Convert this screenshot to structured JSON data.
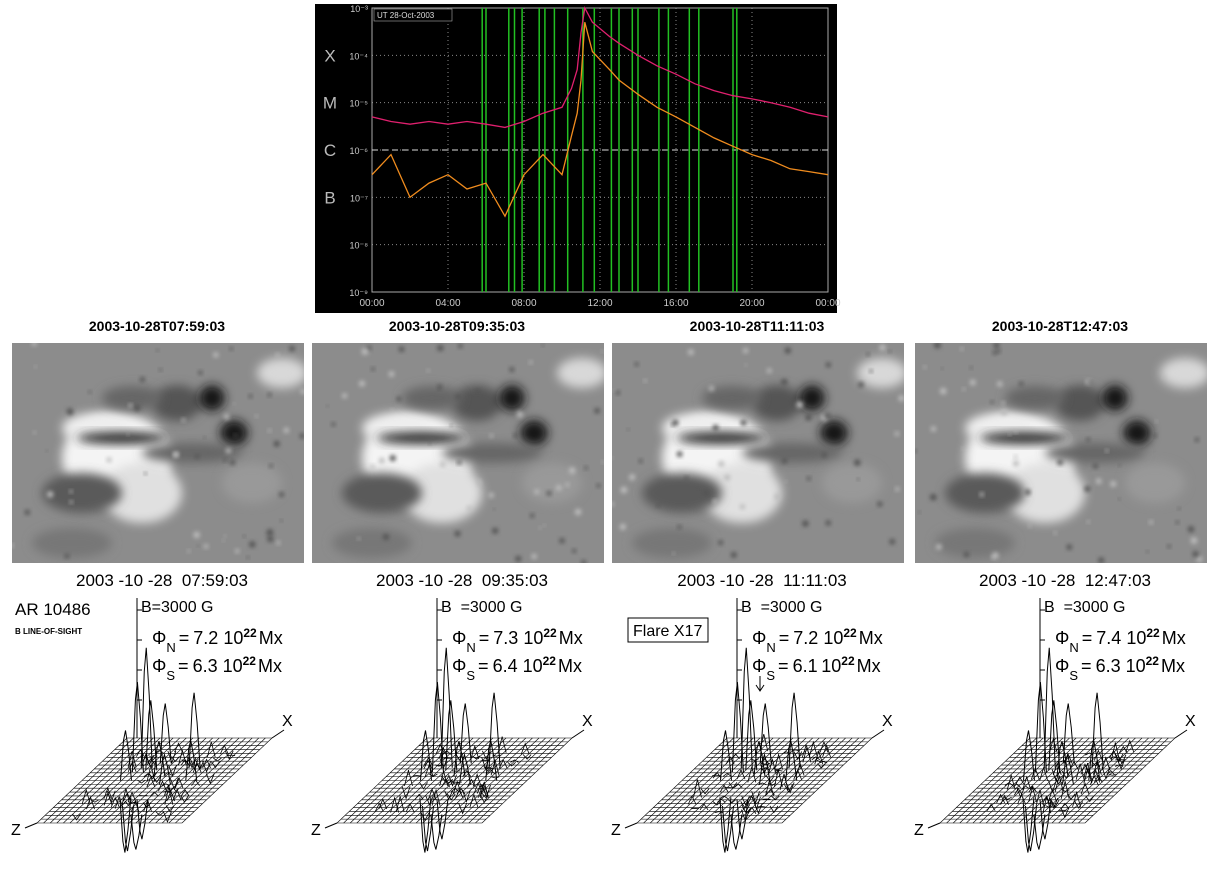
{
  "chart_data": {
    "type": "line",
    "subtitle": "UT 28-Oct-2003",
    "log_y": true,
    "grid": true,
    "x": [
      0,
      1,
      2,
      3,
      4,
      5,
      6,
      7,
      8,
      9,
      10,
      10.5,
      10.8,
      11,
      11.2,
      11.6,
      12.5,
      13,
      14,
      15,
      16,
      17,
      18,
      19,
      20,
      21,
      22,
      23,
      24
    ],
    "series": [
      {
        "color": "#e0206e",
        "values": [
          5e-06,
          4e-06,
          3.5e-06,
          4e-06,
          3.5e-06,
          4e-06,
          3.5e-06,
          3e-06,
          4e-06,
          6e-06,
          8e-06,
          2e-05,
          5e-05,
          0.0003,
          0.001,
          0.0005,
          0.00025,
          0.00018,
          0.0001,
          6e-05,
          4e-05,
          2.5e-05,
          1.8e-05,
          1.4e-05,
          1.2e-05,
          1e-05,
          8e-06,
          6e-06,
          5e-06
        ]
      },
      {
        "color": "#f08c1e",
        "values": [
          3e-07,
          8e-07,
          1e-07,
          2e-07,
          3e-07,
          1.5e-07,
          2e-07,
          4e-08,
          3e-07,
          8e-07,
          3e-07,
          2e-06,
          6e-06,
          3e-05,
          0.0005,
          0.00012,
          5e-05,
          3e-05,
          1.5e-05,
          8e-06,
          5e-06,
          3e-06,
          1.8e-06,
          1.2e-06,
          8e-07,
          6e-07,
          4e-07,
          3.5e-07,
          3e-07
        ]
      }
    ],
    "markers_x": [
      5.8,
      6.0,
      7.2,
      7.5,
      7.9,
      8.8,
      9.1,
      9.6,
      10.3,
      11.1,
      11.7,
      12.6,
      13.0,
      13.7,
      14.0,
      15.1,
      15.6,
      16.7,
      17.2,
      19.0,
      19.2
    ],
    "marker_color": "#22c022",
    "reference_line": 1e-06,
    "xlim": [
      0,
      24
    ],
    "xticks": [
      {
        "value": 0,
        "label": "00:00"
      },
      {
        "value": 4,
        "label": "04:00"
      },
      {
        "value": 8,
        "label": "08:00"
      },
      {
        "value": 12,
        "label": "12:00"
      },
      {
        "value": 16,
        "label": "16:00"
      },
      {
        "value": 20,
        "label": "20:00"
      },
      {
        "value": 24,
        "label": "00:00"
      }
    ],
    "ylim": [
      1e-09,
      0.001
    ],
    "yticks": [
      {
        "value": 1e-09,
        "label": "10⁻⁹"
      },
      {
        "value": 1e-08,
        "label": "10⁻⁸"
      },
      {
        "value": 1e-07,
        "label": "10⁻⁷"
      },
      {
        "value": 1e-06,
        "label": "10⁻⁶"
      },
      {
        "value": 1e-05,
        "label": "10⁻⁵"
      },
      {
        "value": 0.0001,
        "label": "10⁻⁴"
      },
      {
        "value": 0.001,
        "label": "10⁻³"
      }
    ],
    "class_labels": [
      {
        "value": 1e-07,
        "label": "B"
      },
      {
        "value": 1e-06,
        "label": "C"
      },
      {
        "value": 1e-05,
        "label": "M"
      },
      {
        "value": 0.0001,
        "label": "X"
      }
    ]
  },
  "figure": {
    "region": "AR 10486",
    "quantity": "B LINE-OF-SIGHT",
    "flare": "Flare X17",
    "axis_x": "X",
    "axis_z": "Z",
    "flux": {
      "symbol": "Φ",
      "north": "N",
      "south": "S",
      "equals": "=",
      "base": "10",
      "exponent": "22",
      "unit": "Mx"
    },
    "panels": [
      {
        "title": "2003-10-28T07:59:03",
        "timestamp": "2003 -10 -28  07:59:03",
        "scale": "B=3000 G",
        "flux_n": 7.2,
        "flux_s": 6.3
      },
      {
        "title": "2003-10-28T09:35:03",
        "timestamp": "2003 -10 -28  09:35:03",
        "scale": "B  =3000 G",
        "flux_n": 7.3,
        "flux_s": 6.4
      },
      {
        "title": "2003-10-28T11:11:03",
        "timestamp": "2003 -10 -28  11:11:03",
        "scale": "B  =3000 G",
        "flux_n": 7.2,
        "flux_s": 6.1
      },
      {
        "title": "2003-10-28T12:47:03",
        "timestamp": "2003 -10 -28  12:47:03",
        "scale": "B  =3000 G",
        "flux_n": 7.4,
        "flux_s": 6.3
      }
    ]
  }
}
